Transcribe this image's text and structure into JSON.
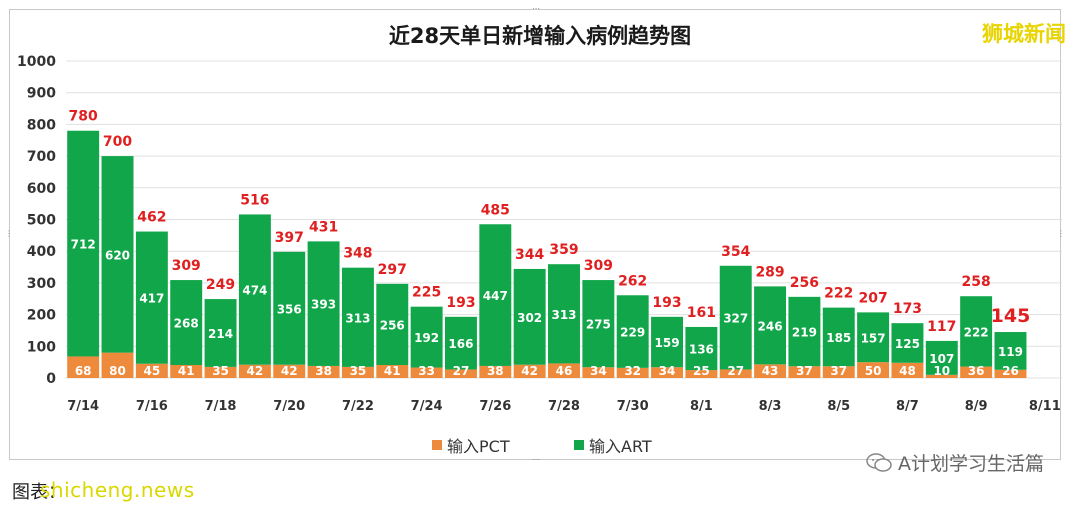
{
  "chart_data": {
    "type": "bar",
    "stacked": true,
    "title": "近28天单日新增输入病例趋势图",
    "x": [
      "7/14",
      "7/15",
      "7/16",
      "7/17",
      "7/18",
      "7/19",
      "7/20",
      "7/21",
      "7/22",
      "7/23",
      "7/24",
      "7/25",
      "7/26",
      "7/27",
      "7/28",
      "7/29",
      "7/30",
      "7/31",
      "8/1",
      "8/2",
      "8/3",
      "8/4",
      "8/5",
      "8/6",
      "8/7",
      "8/8",
      "8/9",
      "8/10"
    ],
    "x_tick_labels": [
      "7/14",
      "7/16",
      "7/18",
      "7/20",
      "7/22",
      "7/24",
      "7/26",
      "7/28",
      "7/30",
      "8/1",
      "8/3",
      "8/5",
      "8/7",
      "8/9",
      "8/11"
    ],
    "series": [
      {
        "name": "输入PCT",
        "color": "#ee8a3c",
        "values": [
          68,
          80,
          45,
          41,
          35,
          42,
          42,
          38,
          35,
          41,
          33,
          27,
          38,
          42,
          46,
          34,
          32,
          34,
          25,
          27,
          43,
          37,
          37,
          50,
          48,
          10,
          36,
          26
        ]
      },
      {
        "name": "输入ART",
        "color": "#12a64a",
        "values": [
          712,
          620,
          417,
          268,
          214,
          474,
          356,
          393,
          313,
          256,
          192,
          166,
          447,
          302,
          313,
          275,
          229,
          159,
          136,
          327,
          246,
          219,
          185,
          157,
          125,
          107,
          222,
          119
        ]
      }
    ],
    "totals": [
      780,
      700,
      462,
      309,
      249,
      516,
      397,
      431,
      348,
      297,
      225,
      193,
      485,
      344,
      359,
      309,
      262,
      193,
      161,
      354,
      289,
      256,
      222,
      207,
      173,
      117,
      258,
      145
    ],
    "ylim": [
      0,
      1000
    ],
    "yticks": [
      0,
      100,
      200,
      300,
      400,
      500,
      600,
      700,
      800,
      900,
      1000
    ],
    "grid": true,
    "legend_position": "bottom",
    "total_label_color": "#e02020"
  },
  "brand": "狮城新闻",
  "footer": {
    "credit": "图表：",
    "watermark": "shicheng.news",
    "wechat": "A计划学习生活篇"
  }
}
